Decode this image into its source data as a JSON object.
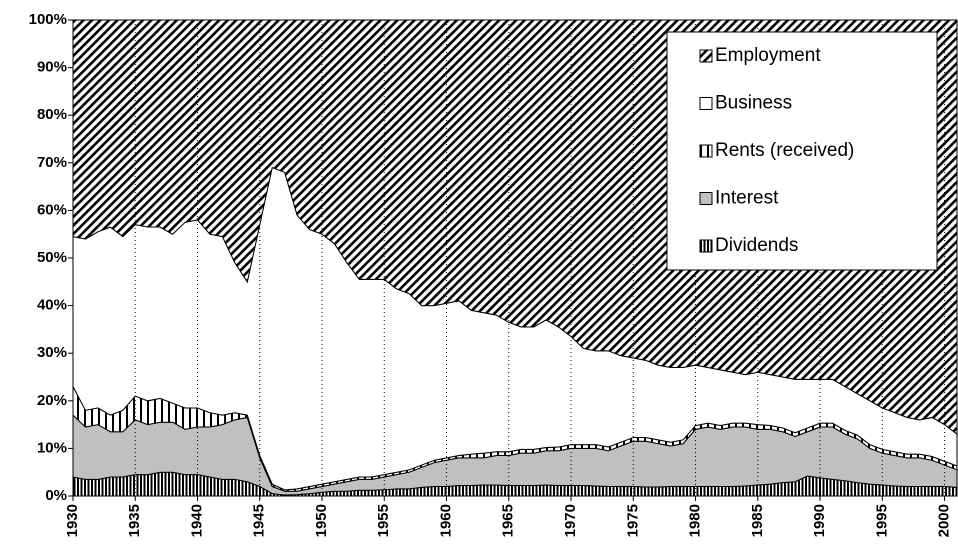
{
  "chart_data": {
    "type": "stacked_area",
    "x": [
      1930,
      1931,
      1932,
      1933,
      1934,
      1935,
      1936,
      1937,
      1938,
      1939,
      1940,
      1941,
      1942,
      1943,
      1944,
      1945,
      1946,
      1947,
      1948,
      1949,
      1950,
      1951,
      1952,
      1953,
      1954,
      1955,
      1956,
      1957,
      1958,
      1959,
      1960,
      1961,
      1962,
      1963,
      1964,
      1965,
      1966,
      1967,
      1968,
      1969,
      1970,
      1971,
      1972,
      1973,
      1974,
      1975,
      1976,
      1977,
      1978,
      1979,
      1980,
      1981,
      1982,
      1983,
      1984,
      1985,
      1986,
      1987,
      1988,
      1989,
      1990,
      1991,
      1992,
      1993,
      1994,
      1995,
      1996,
      1997,
      1998,
      1999,
      2000,
      2001
    ],
    "series": [
      {
        "name": "Dividends",
        "pattern": "dense-vertical",
        "values": [
          4,
          3.5,
          3.5,
          4,
          4,
          4.5,
          4.5,
          5,
          5,
          4.5,
          4.5,
          4,
          3.5,
          3.5,
          3,
          2,
          0.5,
          0.2,
          0.3,
          0.5,
          0.8,
          1,
          1,
          1.2,
          1.2,
          1.3,
          1.5,
          1.5,
          1.8,
          2,
          2,
          2.2,
          2.2,
          2.3,
          2.3,
          2.2,
          2.2,
          2.2,
          2.3,
          2.2,
          2.2,
          2.2,
          2.1,
          2,
          2,
          2,
          1.9,
          1.9,
          2,
          2,
          2,
          2,
          2,
          2,
          2.1,
          2.3,
          2.5,
          2.8,
          3,
          4.2,
          3.8,
          3.5,
          3.2,
          2.8,
          2.5,
          2.3,
          2.1,
          2,
          2,
          2,
          2,
          1.8
        ]
      },
      {
        "name": "Interest",
        "color": "#c0c0c0",
        "values": [
          13,
          11,
          11.5,
          9.5,
          9.5,
          11.5,
          10.5,
          10.5,
          10.5,
          9.5,
          10,
          10.5,
          11.5,
          12.5,
          13.5,
          6,
          1.5,
          0.8,
          0.7,
          1,
          1.2,
          1.5,
          2,
          2.3,
          2.3,
          2.7,
          3,
          3.5,
          4.2,
          5,
          5.5,
          5.8,
          5.8,
          5.7,
          6.2,
          6.3,
          6.8,
          6.8,
          7.2,
          7.3,
          7.8,
          7.8,
          7.9,
          7.5,
          8.5,
          9.5,
          9.6,
          9.1,
          8.5,
          9,
          12,
          12.5,
          12,
          12.5,
          12.4,
          11.7,
          11.5,
          10.7,
          9.5,
          9.3,
          10.7,
          11,
          9.8,
          9.2,
          7.5,
          6.7,
          6.4,
          6,
          6,
          5.5,
          4.5,
          3.7
        ]
      },
      {
        "name": "Rents (received)",
        "pattern": "sparse-vertical",
        "values": [
          6,
          3.5,
          3.5,
          3.5,
          4.5,
          5,
          5,
          5,
          4,
          4.5,
          4,
          3,
          2,
          1.5,
          0.5,
          0.5,
          0.5,
          0.3,
          0.5,
          0.5,
          0.5,
          0.5,
          0.5,
          0.5,
          0.5,
          0.5,
          0.5,
          0.5,
          0.5,
          0.5,
          0.5,
          0.5,
          0.8,
          1,
          0.8,
          0.8,
          0.8,
          0.8,
          0.7,
          0.8,
          0.8,
          0.8,
          0.8,
          0.8,
          0.8,
          0.8,
          0.8,
          0.8,
          0.8,
          0.8,
          0.8,
          0.8,
          0.8,
          0.8,
          0.8,
          1,
          0.8,
          0.8,
          0.8,
          0.8,
          0.8,
          0.8,
          0.8,
          0.8,
          0.8,
          0.8,
          0.8,
          0.8,
          0.8,
          0.8,
          0.8,
          0.8
        ]
      },
      {
        "name": "Business",
        "color": "#ffffff",
        "values": [
          31.5,
          36,
          37,
          39.5,
          36.5,
          36,
          36.5,
          36,
          35.5,
          39,
          39.5,
          37.5,
          37.5,
          31.5,
          28,
          48.5,
          66.5,
          66.7,
          57.5,
          54,
          52.5,
          50,
          45.5,
          41.5,
          41.5,
          41,
          38.5,
          37,
          33.5,
          32.5,
          32.5,
          32.5,
          30.2,
          29.5,
          28.7,
          27.2,
          25.7,
          25.7,
          26.8,
          25.2,
          22.7,
          20.2,
          19.7,
          20.2,
          18.2,
          16.7,
          16.2,
          15.7,
          15.7,
          15.2,
          12.7,
          11.7,
          11.7,
          10.7,
          10.2,
          11,
          10.7,
          10.7,
          11.2,
          10.2,
          9.2,
          9.2,
          9.2,
          8.7,
          9.2,
          8.7,
          8.2,
          7.7,
          7.2,
          8.2,
          7.7,
          6.7
        ]
      },
      {
        "name": "Employment",
        "pattern": "diagonal",
        "values": [
          45.5,
          46,
          44.5,
          43.5,
          45.5,
          43,
          43.5,
          43.5,
          45,
          42.5,
          42,
          45,
          45.5,
          51,
          55,
          43,
          31,
          32,
          41,
          44,
          45,
          47,
          51,
          54.5,
          54.5,
          54.5,
          56.5,
          57.5,
          60,
          60,
          59.5,
          59,
          61,
          61.5,
          62,
          63.5,
          64.5,
          64.5,
          63,
          64.5,
          66.5,
          69,
          69.5,
          69.5,
          70.5,
          71,
          71.5,
          72.5,
          73,
          73,
          72.5,
          73,
          73.5,
          74,
          74.5,
          74,
          74.5,
          75,
          75.5,
          75.5,
          75.5,
          75.5,
          77,
          78.5,
          80,
          81.5,
          82.5,
          83.5,
          84,
          83.5,
          85,
          87
        ]
      }
    ],
    "xlim": [
      1930,
      2001
    ],
    "xticks": [
      1930,
      1935,
      1940,
      1945,
      1950,
      1955,
      1960,
      1965,
      1970,
      1975,
      1980,
      1985,
      1990,
      1995,
      2000
    ],
    "ylim": [
      0,
      100
    ],
    "yticks": [
      {
        "value": 0,
        "label": "0%"
      },
      {
        "value": 10,
        "label": "10%"
      },
      {
        "value": 20,
        "label": "20%"
      },
      {
        "value": 30,
        "label": "30%"
      },
      {
        "value": 40,
        "label": "40%"
      },
      {
        "value": 50,
        "label": "50%"
      },
      {
        "value": 60,
        "label": "60%"
      },
      {
        "value": 70,
        "label": "70%"
      },
      {
        "value": 80,
        "label": "80%"
      },
      {
        "value": 90,
        "label": "90%"
      },
      {
        "value": 100,
        "label": "100%"
      }
    ],
    "xgrid": "dotted",
    "legend": "top-right"
  }
}
